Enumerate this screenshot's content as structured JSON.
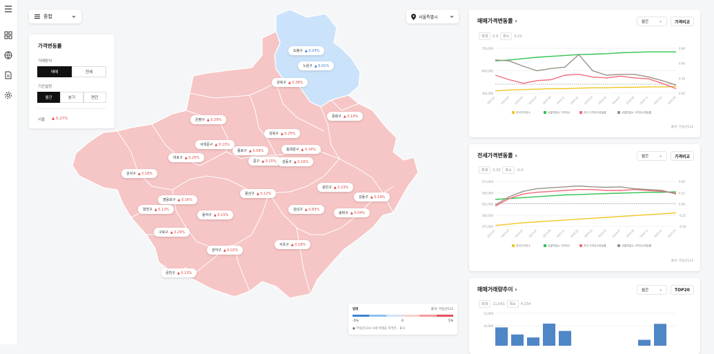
{
  "nav": {
    "menu_icon": "menu-icon",
    "icons": [
      "grid-icon",
      "globe-icon",
      "document-icon",
      "settings-icon"
    ]
  },
  "top": {
    "category": "종합",
    "region": "서울특별시"
  },
  "filter": {
    "title": "가격변동률",
    "trade_label": "거래방식",
    "trade_options": [
      "매매",
      "전세"
    ],
    "period_label": "기간설정",
    "period_options": [
      "월간",
      "분기",
      "연간"
    ],
    "city_name": "서울",
    "city_value": "▲ 0.27%"
  },
  "districts": [
    {
      "name": "도봉구",
      "value": "▲ 0.03%",
      "tone": "blue"
    },
    {
      "name": "노원구",
      "value": "▲ 0.01%",
      "tone": "blue"
    },
    {
      "name": "강북구",
      "value": "▲ 0.38%",
      "tone": "red"
    },
    {
      "name": "중랑구",
      "value": "▲ 0.14%",
      "tone": "red"
    },
    {
      "name": "은평구",
      "value": "▲ 0.29%",
      "tone": "red"
    },
    {
      "name": "성북구",
      "value": "▲ 0.25%",
      "tone": "red"
    },
    {
      "name": "서대문구",
      "value": "▲ 0.13%",
      "tone": "red"
    },
    {
      "name": "종로구",
      "value": "▲ 0.09%",
      "tone": "red"
    },
    {
      "name": "동대문구",
      "value": "▲ 0.14%",
      "tone": "red"
    },
    {
      "name": "마포구",
      "value": "▲ 0.25%",
      "tone": "red"
    },
    {
      "name": "중구",
      "value": "▲ 0.15%",
      "tone": "red"
    },
    {
      "name": "성동구",
      "value": "▲ 0.16%",
      "tone": "red"
    },
    {
      "name": "강서구",
      "value": "▲ 0.18%",
      "tone": "red"
    },
    {
      "name": "광진구",
      "value": "▲ 0.23%",
      "tone": "red"
    },
    {
      "name": "용산구",
      "value": "▲ 0.12%",
      "tone": "red"
    },
    {
      "name": "강동구",
      "value": "▲ 0.19%",
      "tone": "red"
    },
    {
      "name": "영등포구",
      "value": "▲ 0.16%",
      "tone": "red"
    },
    {
      "name": "양천구",
      "value": "▲ 0.12%",
      "tone": "red"
    },
    {
      "name": "동작구",
      "value": "▲ 0.15%",
      "tone": "red"
    },
    {
      "name": "강남구",
      "value": "▲ 0.83%",
      "tone": "red"
    },
    {
      "name": "송파구",
      "value": "▲ 0.04%",
      "tone": "red"
    },
    {
      "name": "구로구",
      "value": "▲ 0.29%",
      "tone": "red"
    },
    {
      "name": "관악구",
      "value": "▲ 0.02%",
      "tone": "red"
    },
    {
      "name": "서초구",
      "value": "▲ 0.18%",
      "tone": "red"
    },
    {
      "name": "금천구",
      "value": "▲ 0.13%",
      "tone": "red"
    }
  ],
  "legend": {
    "title": "범례",
    "source": "출처: 부동산114",
    "min": "-5%",
    "mid": "0",
    "max": "5%",
    "note": "● 부동산114 시세 미제공 지역은 - 표시",
    "colors": [
      "#3b82d6",
      "#8cc0ee",
      "#cfe4f7",
      "#f7d0d0",
      "#f39a9a",
      "#e3525a"
    ]
  },
  "sale_card": {
    "title": "매매가격변동률",
    "period": "월간",
    "compare": "가격비교",
    "max_label": "최대",
    "max": "0.9",
    "min_label": "최소",
    "min": "0.23",
    "source": "출처: 부동산114",
    "y_left": [
      "750,000",
      "600,000",
      "450,000"
    ],
    "y_right": [
      "0.90",
      "0.60",
      "0.30",
      "0.00"
    ],
    "x": [
      "2023.01",
      "2023.03",
      "2023.05",
      "2023.07",
      "2023.09",
      "2023.11",
      "2024.01",
      "2024.03",
      "2024.05",
      "2024.07",
      "2024.09",
      "2024.11",
      "2025.01",
      "2025.04"
    ],
    "legend": [
      "전국가격지수",
      "서울특별시 가격지수",
      "전국 가격지수변동률",
      "서울특별시 가격지수변동률"
    ],
    "colors": [
      "#f3c623",
      "#2fc34f",
      "#f26b7a",
      "#999186"
    ]
  },
  "jeonse_card": {
    "title": "전세가격변동률",
    "period": "월간",
    "compare": "가격비교",
    "max_label": "최대",
    "max": "0.33",
    "min_label": "최소",
    "min": "-0.4",
    "source": "출처: 부동산114",
    "y_left": [
      "575,000",
      "550,000",
      "525,000",
      "500,000",
      "475,000"
    ],
    "y_right": [
      "0.50",
      "0.25",
      "0.00",
      "-0.25",
      "-0.50"
    ],
    "x": [
      "2023.01",
      "2023.03",
      "2023.05",
      "2023.07",
      "2023.09",
      "2023.11",
      "2024.01",
      "2024.03",
      "2024.05",
      "2024.07",
      "2024.09",
      "2024.11",
      "2025.01",
      "2025.04"
    ],
    "legend": [
      "전국가격지수",
      "서울특별시 가격지수",
      "전국 가격지수변동률",
      "서울특별시 가격지수변동률"
    ],
    "colors": [
      "#f3c623",
      "#2fc34f",
      "#f26b7a",
      "#999186"
    ]
  },
  "volume_card": {
    "title": "매매거래량추이",
    "period": "월간",
    "top": "TOP20",
    "max_label": "최대",
    "max": "11,041",
    "min_label": "최소",
    "min": "4,154",
    "y_left": [
      "12,000",
      "10,000"
    ]
  }
}
